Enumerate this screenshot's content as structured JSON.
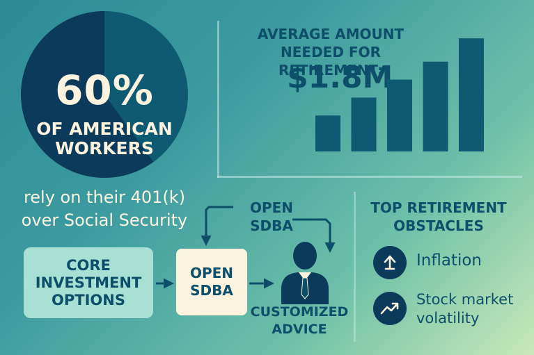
{
  "stat": {
    "percent": "60%",
    "label_line1": "OF AMERICAN",
    "label_line2": "WORKERS",
    "caption_line1": "rely on their 401(k)",
    "caption_line2": "over Social Security",
    "pie_fraction": 0.4
  },
  "chart": {
    "title_line1": "AVERAGE AMOUNT",
    "title_line2": "NEEDED FOR RETIREMENT:",
    "value": "$1.8M"
  },
  "chart_data": {
    "type": "bar",
    "categories": [
      "",
      "",
      "",
      "",
      ""
    ],
    "values": [
      2,
      3,
      4,
      5,
      6.3
    ],
    "title": "AVERAGE AMOUNT NEEDED FOR RETIREMENT:",
    "xlabel": "",
    "ylabel": "",
    "ylim": [
      0,
      6.5
    ],
    "grid": false,
    "bar_color": "#0e5a73"
  },
  "flow": {
    "core_line1": "CORE",
    "core_line2": "INVESTMENT",
    "core_line3": "OPTIONS",
    "open_line1": "OPEN",
    "open_line2": "SDBA",
    "top_line1": "OPEN",
    "top_line2": "SDBA",
    "advice_line1": "CUSTOMIZED",
    "advice_line2": "ADVICE",
    "advisor_icon": "person-tie-icon"
  },
  "obstacles": {
    "title_line1": "TOP RETIREMENT",
    "title_line2": "OBSTACLES",
    "items": [
      {
        "icon": "up-arrow-icon",
        "line1": "Inflation",
        "line2": ""
      },
      {
        "icon": "trend-up-icon",
        "line1": "Stock market",
        "line2": "volatility"
      }
    ]
  },
  "colors": {
    "navy": "#0b3a5b",
    "teal_dark": "#0d4f6b",
    "cream": "#fbf3dd",
    "mint": "#a8e0d3"
  }
}
